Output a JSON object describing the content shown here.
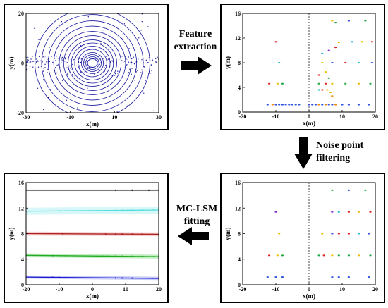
{
  "steps": {
    "feature_extraction": [
      "Feature",
      "extraction"
    ],
    "noise_filtering": [
      "Noise point",
      "filtering"
    ],
    "mc_lsm_fitting": [
      "MC-LSM",
      "fitting"
    ]
  },
  "chart_data": [
    {
      "id": "raw_lidar",
      "type": "scatter",
      "xlabel": "x(m)",
      "ylabel": "y(m)",
      "xlim": [
        -30,
        30
      ],
      "ylim": [
        -20,
        20
      ],
      "xticks": [
        -30,
        -10,
        10,
        30
      ],
      "yticks": [
        -20,
        0,
        20
      ],
      "rings": [
        2,
        3,
        4,
        5,
        6.5,
        8,
        9.5,
        11,
        13,
        15,
        17.5,
        20,
        23,
        26
      ],
      "color": "#1a1aa0"
    },
    {
      "id": "feature_extraction",
      "type": "scatter",
      "xlabel": "x(m)",
      "ylabel": "y(m)",
      "xlim": [
        -20,
        20
      ],
      "ylim": [
        0,
        16
      ],
      "xticks": [
        -20,
        -10,
        0,
        10,
        20
      ],
      "yticks": [
        0,
        4,
        8,
        12,
        16
      ],
      "points": [
        [
          -12.5,
          1.2,
          "#3355dd"
        ],
        [
          -11,
          1.2,
          "#ee8800"
        ],
        [
          -10,
          1.2,
          "#3355dd"
        ],
        [
          -9,
          1.2,
          "#3355dd"
        ],
        [
          -8,
          1.2,
          "#3355dd"
        ],
        [
          -7,
          1.2,
          "#3355dd"
        ],
        [
          -6,
          1.2,
          "#3355dd"
        ],
        [
          -5,
          1.2,
          "#3355dd"
        ],
        [
          -4,
          1.2,
          "#3355dd"
        ],
        [
          -3,
          1.2,
          "#3355dd"
        ],
        [
          0,
          1.2,
          "#3355dd"
        ],
        [
          1,
          1.2,
          "#3355dd"
        ],
        [
          2,
          1.2,
          "#3355dd"
        ],
        [
          3,
          1.2,
          "#ee8800"
        ],
        [
          4,
          1.2,
          "#3355dd"
        ],
        [
          5,
          1.2,
          "#ee8800"
        ],
        [
          6,
          1.2,
          "#3355dd"
        ],
        [
          7,
          1.2,
          "#3355dd"
        ],
        [
          8,
          1.2,
          "#ee8800"
        ],
        [
          10,
          1.2,
          "#3355dd"
        ],
        [
          12,
          1.2,
          "#3355dd"
        ],
        [
          15,
          1.2,
          "#3355dd"
        ],
        [
          18,
          1.2,
          "#3355dd"
        ],
        [
          -12,
          4.6,
          "#dd2222"
        ],
        [
          -9.5,
          4.6,
          "#eebb00"
        ],
        [
          -8,
          4.6,
          "#22aa44"
        ],
        [
          3,
          4.6,
          "#22aa44"
        ],
        [
          5,
          4.6,
          "#dd2222"
        ],
        [
          7,
          4.6,
          "#eebb00"
        ],
        [
          11,
          4.6,
          "#22aa44"
        ],
        [
          15,
          4.6,
          "#eebb00"
        ],
        [
          18.5,
          4.6,
          "#22aa44"
        ],
        [
          3,
          3.6,
          "#22bbcc"
        ],
        [
          4,
          3.6,
          "#dd2222"
        ],
        [
          5.5,
          3.6,
          "#eebb00"
        ],
        [
          7,
          2.6,
          "#ee8800"
        ],
        [
          6.5,
          3.2,
          "#eebb00"
        ],
        [
          -9,
          8,
          "#22bbcc"
        ],
        [
          3,
          6,
          "#dd2222"
        ],
        [
          5,
          6.5,
          "#eebb00"
        ],
        [
          6,
          5.5,
          "#22aa44"
        ],
        [
          4,
          8,
          "#eebb00"
        ],
        [
          7,
          8,
          "#3355dd"
        ],
        [
          11,
          8,
          "#dd2222"
        ],
        [
          15,
          8,
          "#22bbcc"
        ],
        [
          19,
          8,
          "#3355dd"
        ],
        [
          4,
          9.5,
          "#22bbcc"
        ],
        [
          6,
          10,
          "#8833cc"
        ],
        [
          8,
          10.5,
          "#dd2222"
        ],
        [
          9,
          11.3,
          "#eebb00"
        ],
        [
          13,
          11.4,
          "#22bbcc"
        ],
        [
          16,
          11.4,
          "#eebb00"
        ],
        [
          19,
          11.4,
          "#dd2222"
        ],
        [
          -10,
          11.4,
          "#dd2222"
        ],
        [
          7,
          14.8,
          "#eebb00"
        ],
        [
          8,
          14.5,
          "#22aa44"
        ],
        [
          12,
          14.8,
          "#3355dd"
        ],
        [
          17,
          14.8,
          "#22aa44"
        ]
      ]
    },
    {
      "id": "noise_filtered",
      "type": "scatter",
      "xlabel": "x(m)",
      "ylabel": "y(m)",
      "xlim": [
        -20,
        20
      ],
      "ylim": [
        0,
        16
      ],
      "xticks": [
        -20,
        -10,
        0,
        10,
        20
      ],
      "yticks": [
        0,
        4,
        8,
        12,
        16
      ],
      "points": [
        [
          -12.5,
          1.2,
          "#3355dd"
        ],
        [
          -10,
          1.2,
          "#3355dd"
        ],
        [
          -8,
          1.2,
          "#3355dd"
        ],
        [
          7,
          1.2,
          "#3355dd"
        ],
        [
          9,
          1.2,
          "#3355dd"
        ],
        [
          12,
          1.2,
          "#3355dd"
        ],
        [
          18,
          1.2,
          "#3355dd"
        ],
        [
          -12,
          4.6,
          "#dd2222"
        ],
        [
          -9.5,
          4.6,
          "#eebb00"
        ],
        [
          -8,
          4.6,
          "#22aa44"
        ],
        [
          3,
          4.6,
          "#22aa44"
        ],
        [
          4.5,
          4.6,
          "#dd2222"
        ],
        [
          7,
          4.6,
          "#eebb00"
        ],
        [
          9,
          4.6,
          "#22aa44"
        ],
        [
          12,
          4.6,
          "#22aa44"
        ],
        [
          15,
          4.6,
          "#eebb00"
        ],
        [
          18.5,
          4.6,
          "#22aa44"
        ],
        [
          -9,
          8,
          "#eebb00"
        ],
        [
          4,
          8,
          "#eebb00"
        ],
        [
          7,
          8,
          "#3355dd"
        ],
        [
          9,
          8,
          "#dd2222"
        ],
        [
          12,
          8,
          "#dd2222"
        ],
        [
          15,
          8,
          "#22bbcc"
        ],
        [
          18,
          8,
          "#3355dd"
        ],
        [
          -10,
          11.4,
          "#8833cc"
        ],
        [
          7,
          11.4,
          "#8833cc"
        ],
        [
          9,
          11.4,
          "#22bbcc"
        ],
        [
          12,
          11.4,
          "#dd2222"
        ],
        [
          15,
          11.4,
          "#eebb00"
        ],
        [
          18.5,
          11.4,
          "#dd2222"
        ],
        [
          7,
          14.8,
          "#22aa44"
        ],
        [
          12,
          14.8,
          "#3355dd"
        ],
        [
          17,
          14.8,
          "#22aa44"
        ]
      ]
    },
    {
      "id": "mc_lsm_fit",
      "type": "line",
      "xlabel": "x(m)",
      "ylabel": "y(m)",
      "xlim": [
        -20,
        20
      ],
      "ylim": [
        0,
        16
      ],
      "xticks": [
        -20,
        -10,
        0,
        10,
        20
      ],
      "yticks": [
        0,
        4,
        8,
        12,
        16
      ],
      "series": [
        {
          "y0": 1.2,
          "y1": 1.0,
          "color": "#1a1ad0",
          "band": "#9aa0f0",
          "band_half": 0.25,
          "points": [
            -12,
            -10,
            -8,
            7,
            9,
            12,
            18
          ]
        },
        {
          "y0": 4.6,
          "y1": 4.4,
          "color": "#22aa22",
          "band": "#8fe08f",
          "band_half": 0.3,
          "points": [
            -12,
            -9.5,
            -8,
            3,
            4.5,
            7,
            9,
            12,
            15,
            18.5
          ]
        },
        {
          "y0": 8.0,
          "y1": 7.9,
          "color": "#aa2222",
          "band": "#f0a0a0",
          "band_half": 0.3,
          "points": [
            -9,
            4,
            7,
            9,
            12,
            15,
            18
          ]
        },
        {
          "y0": 11.5,
          "y1": 11.7,
          "color": "#55dddd",
          "band": "#b8f0f4",
          "band_half": 0.55,
          "points": [
            -10,
            7,
            9,
            12,
            15,
            18.5
          ]
        },
        {
          "y0": 14.8,
          "y1": 14.8,
          "color": "#111111",
          "band": "#dddddd",
          "band_half": 0.15,
          "points": [
            7,
            12,
            17
          ]
        }
      ]
    }
  ]
}
